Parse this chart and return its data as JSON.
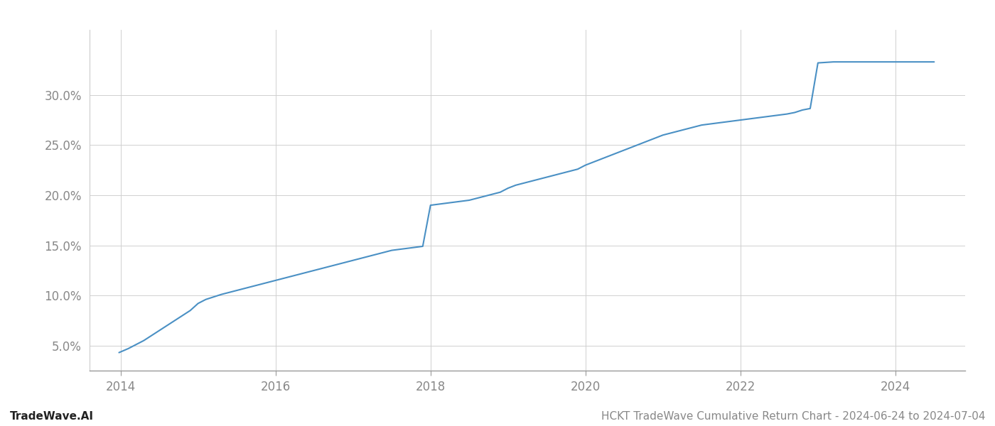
{
  "title": "",
  "footer_left": "TradeWave.AI",
  "footer_right": "HCKT TradeWave Cumulative Return Chart - 2024-06-24 to 2024-07-04",
  "line_color": "#4a90c4",
  "line_width": 1.5,
  "background_color": "#ffffff",
  "grid_color": "#d0d0d0",
  "x_years": [
    2013.98,
    2014.1,
    2014.3,
    2014.5,
    2014.7,
    2014.9,
    2015.0,
    2015.1,
    2015.2,
    2015.3,
    2015.4,
    2015.5,
    2015.6,
    2015.7,
    2015.8,
    2015.9,
    2016.0,
    2016.1,
    2016.2,
    2016.3,
    2016.4,
    2016.5,
    2016.6,
    2016.7,
    2016.8,
    2016.9,
    2017.0,
    2017.1,
    2017.2,
    2017.3,
    2017.4,
    2017.5,
    2017.6,
    2017.7,
    2017.8,
    2017.9,
    2018.0,
    2018.1,
    2018.2,
    2018.3,
    2018.4,
    2018.5,
    2018.6,
    2018.7,
    2018.8,
    2018.9,
    2019.0,
    2019.1,
    2019.2,
    2019.3,
    2019.4,
    2019.5,
    2019.6,
    2019.7,
    2019.8,
    2019.9,
    2020.0,
    2020.1,
    2020.2,
    2020.3,
    2020.4,
    2020.5,
    2020.6,
    2020.7,
    2020.8,
    2020.9,
    2021.0,
    2021.1,
    2021.2,
    2021.3,
    2021.4,
    2021.5,
    2021.6,
    2021.7,
    2021.8,
    2021.9,
    2022.0,
    2022.1,
    2022.2,
    2022.3,
    2022.4,
    2022.5,
    2022.6,
    2022.7,
    2022.8,
    2022.9,
    2023.0,
    2023.1,
    2023.2,
    2023.3,
    2023.4,
    2023.5,
    2024.0,
    2024.5
  ],
  "y_values": [
    4.3,
    4.7,
    5.5,
    6.5,
    7.5,
    8.5,
    9.2,
    9.6,
    9.85,
    10.1,
    10.3,
    10.5,
    10.7,
    10.9,
    11.1,
    11.3,
    11.5,
    11.7,
    11.9,
    12.1,
    12.3,
    12.5,
    12.7,
    12.9,
    13.1,
    13.3,
    13.5,
    13.7,
    13.9,
    14.1,
    14.3,
    14.5,
    14.6,
    14.7,
    14.8,
    14.9,
    19.0,
    19.1,
    19.2,
    19.3,
    19.4,
    19.5,
    19.7,
    19.9,
    20.1,
    20.3,
    20.7,
    21.0,
    21.2,
    21.4,
    21.6,
    21.8,
    22.0,
    22.2,
    22.4,
    22.6,
    23.0,
    23.3,
    23.6,
    23.9,
    24.2,
    24.5,
    24.8,
    25.1,
    25.4,
    25.7,
    26.0,
    26.2,
    26.4,
    26.6,
    26.8,
    27.0,
    27.1,
    27.2,
    27.3,
    27.4,
    27.5,
    27.6,
    27.7,
    27.8,
    27.9,
    28.0,
    28.1,
    28.25,
    28.5,
    28.65,
    33.2,
    33.25,
    33.3,
    33.3,
    33.3,
    33.3,
    33.3,
    33.3
  ],
  "xlim": [
    2013.6,
    2024.9
  ],
  "ylim": [
    2.5,
    36.5
  ],
  "yticks": [
    5.0,
    10.0,
    15.0,
    20.0,
    25.0,
    30.0
  ],
  "xticks": [
    2014,
    2016,
    2018,
    2020,
    2022,
    2024
  ],
  "tick_label_color": "#888888",
  "tick_fontsize": 12,
  "footer_fontsize": 11,
  "footer_left_color": "#222222",
  "footer_right_color": "#888888"
}
